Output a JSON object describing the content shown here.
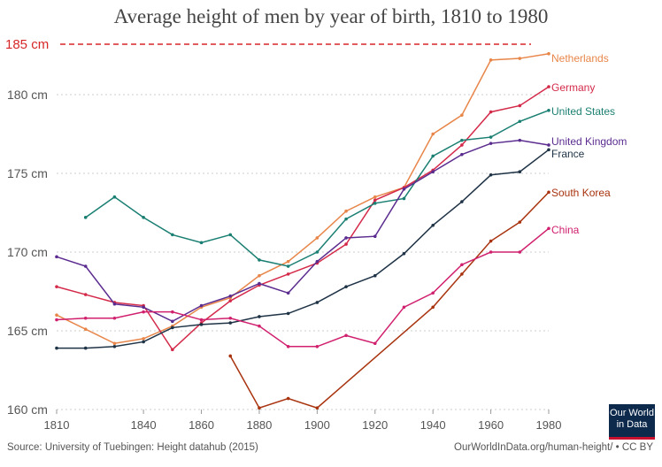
{
  "chart_data": {
    "type": "line",
    "title": "Average height of men by year of birth, 1810 to 1980",
    "x": [
      1810,
      1820,
      1830,
      1840,
      1850,
      1860,
      1870,
      1880,
      1890,
      1900,
      1910,
      1920,
      1930,
      1940,
      1950,
      1960,
      1970,
      1980
    ],
    "xticks": [
      "1810",
      "1840",
      "1860",
      "1880",
      "1900",
      "1920",
      "1940",
      "1960",
      "1980"
    ],
    "yticks": [
      "160 cm",
      "165 cm",
      "170 cm",
      "175 cm",
      "180 cm"
    ],
    "ylim": [
      160,
      185
    ],
    "grid": "horizontal dotted",
    "reference_line": {
      "value": 185,
      "label": "185 cm",
      "color": "#d62728"
    },
    "series": [
      {
        "name": "Netherlands",
        "color": "#e8864a",
        "values": [
          166.0,
          165.1,
          164.2,
          164.5,
          165.3,
          166.5,
          167.1,
          168.5,
          169.4,
          170.9,
          172.6,
          173.5,
          174.1,
          177.5,
          178.7,
          182.2,
          182.3,
          182.6
        ]
      },
      {
        "name": "Germany",
        "color": "#d42a4a",
        "values": [
          167.8,
          167.3,
          166.8,
          166.6,
          163.8,
          165.5,
          166.9,
          167.9,
          168.6,
          169.3,
          170.5,
          173.3,
          174.1,
          175.2,
          176.8,
          178.9,
          179.3,
          180.5
        ]
      },
      {
        "name": "United States",
        "color": "#1a7f72",
        "values": [
          null,
          172.2,
          173.5,
          172.2,
          171.1,
          170.6,
          171.1,
          169.5,
          169.1,
          170.0,
          172.1,
          173.1,
          173.4,
          176.1,
          177.1,
          177.3,
          178.3,
          179.0
        ]
      },
      {
        "name": "United Kingdom",
        "color": "#5b2c8f",
        "values": [
          169.7,
          169.1,
          166.7,
          166.5,
          165.6,
          166.6,
          167.2,
          168.0,
          167.4,
          169.4,
          170.9,
          171.0,
          174.0,
          175.1,
          176.2,
          176.9,
          177.1,
          176.8
        ]
      },
      {
        "name": "France",
        "color": "#1f3346",
        "values": [
          163.9,
          163.9,
          164.0,
          164.3,
          165.2,
          165.4,
          165.5,
          165.9,
          166.1,
          166.8,
          167.8,
          168.5,
          169.9,
          171.7,
          173.2,
          174.9,
          175.1,
          176.5
        ]
      },
      {
        "name": "South Korea",
        "color": "#a8330e",
        "values": [
          null,
          null,
          null,
          null,
          null,
          null,
          163.4,
          160.1,
          160.7,
          160.1,
          null,
          null,
          null,
          166.5,
          168.6,
          170.7,
          171.9,
          173.8
        ]
      },
      {
        "name": "China",
        "color": "#d0206e",
        "values": [
          165.7,
          165.8,
          165.8,
          166.2,
          166.2,
          165.7,
          165.8,
          165.3,
          164.0,
          164.0,
          164.7,
          164.2,
          166.5,
          167.4,
          169.2,
          170.0,
          170.0,
          171.5
        ]
      }
    ]
  },
  "footer": {
    "source": "Source: University of Tuebingen: Height datahub (2015)",
    "url": "OurWorldInData.org/human-height/ • CC BY",
    "logo": "Our World in Data"
  }
}
